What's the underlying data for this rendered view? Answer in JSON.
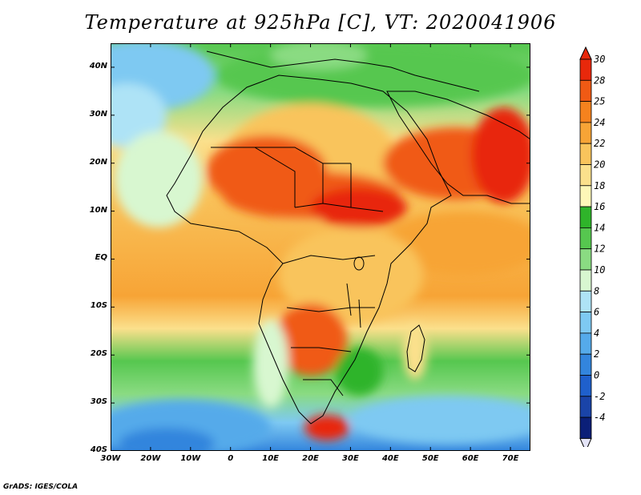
{
  "title": "Temperature at 925hPa [C], VT: 2020041906",
  "footer": "GrADS: IGES/COLA",
  "map": {
    "variable": "Temperature",
    "level": "925hPa",
    "units": "C",
    "valid_time": "2020041906",
    "lon_range": [
      -30,
      75
    ],
    "lat_range": [
      -40,
      45
    ],
    "lon_labels": [
      "30W",
      "20W",
      "10W",
      "0",
      "10E",
      "20E",
      "30E",
      "40E",
      "50E",
      "60E",
      "70E"
    ],
    "lat_labels": [
      "40N",
      "30N",
      "20N",
      "10N",
      "EQ",
      "10S",
      "20S",
      "30S",
      "40S"
    ]
  },
  "colorbar": {
    "labels": [
      "30",
      "28",
      "25",
      "24",
      "22",
      "20",
      "18",
      "16",
      "14",
      "12",
      "10",
      "8",
      "6",
      "4",
      "2",
      "0",
      "-2",
      "-4"
    ],
    "colors": [
      "#e8280b",
      "#f05a14",
      "#f5821e",
      "#f7a436",
      "#f9c45c",
      "#fbe08c",
      "#fdf7b8",
      "#2fb42a",
      "#56c74f",
      "#8adb82",
      "#d8f7d0",
      "#aee3f6",
      "#7ec9f2",
      "#55aaea",
      "#3385dd",
      "#1f60cc",
      "#1a44a8",
      "#0b1f78"
    ]
  }
}
